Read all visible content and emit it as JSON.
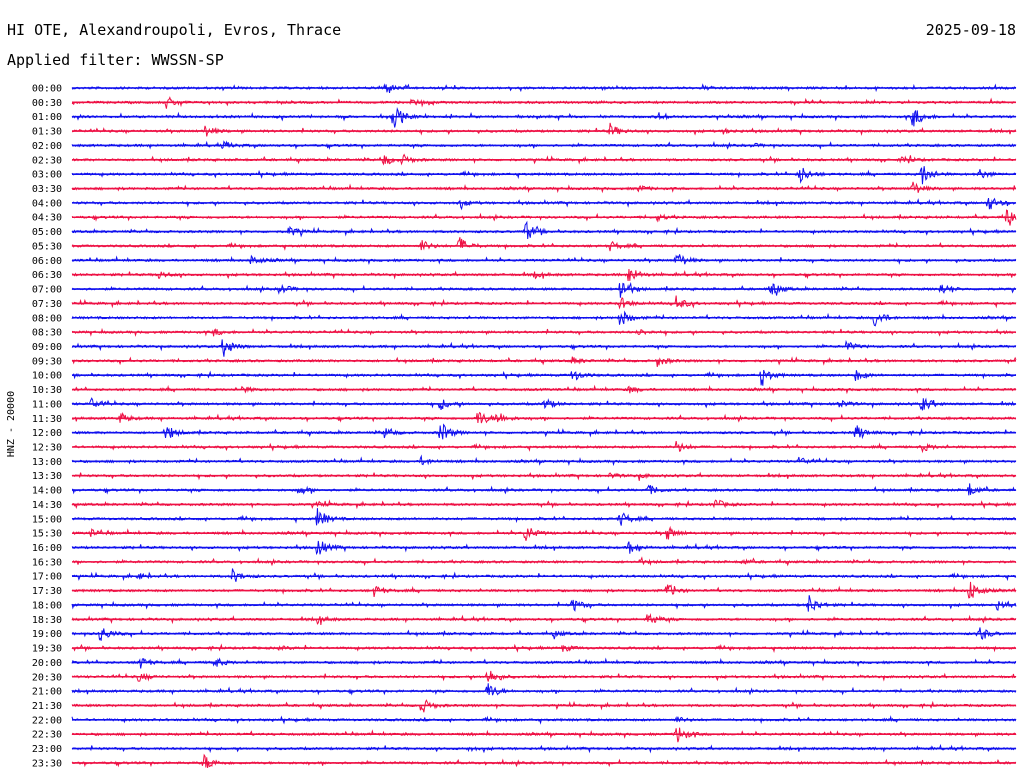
{
  "header": {
    "title": "HI OTE, Alexandroupoli, Evros, Thrace",
    "date": "2025-09-18",
    "filter": "Applied filter: WWSSN-SP"
  },
  "chart_data": {
    "type": "line",
    "ylabel": "HNZ - 20000",
    "colors": [
      "#1010ee",
      "#ee1044"
    ],
    "rows": [
      {
        "label": "00:00",
        "events": [
          {
            "t": 0.33,
            "a": 1.0
          },
          {
            "t": 0.67,
            "a": 0.25
          }
        ]
      },
      {
        "label": "00:30",
        "events": [
          {
            "t": 0.1,
            "a": 1.0
          },
          {
            "t": 0.36,
            "a": 0.5
          }
        ]
      },
      {
        "label": "01:00",
        "events": [
          {
            "t": 0.34,
            "a": 2.2
          },
          {
            "t": 0.62,
            "a": 0.8
          },
          {
            "t": 0.89,
            "a": 2.0
          }
        ]
      },
      {
        "label": "01:30",
        "events": [
          {
            "t": 0.14,
            "a": 1.1
          },
          {
            "t": 0.57,
            "a": 1.2
          },
          {
            "t": 0.69,
            "a": 0.4
          }
        ]
      },
      {
        "label": "02:00",
        "events": [
          {
            "t": 0.16,
            "a": 0.6
          },
          {
            "t": 0.72,
            "a": 0.3
          }
        ]
      },
      {
        "label": "02:30",
        "events": [
          {
            "t": 0.33,
            "a": 1.0
          },
          {
            "t": 0.35,
            "a": 0.8
          },
          {
            "t": 0.88,
            "a": 0.8
          }
        ]
      },
      {
        "label": "03:00",
        "events": [
          {
            "t": 0.77,
            "a": 1.8
          },
          {
            "t": 0.9,
            "a": 2.0
          },
          {
            "t": 0.96,
            "a": 0.9
          }
        ]
      },
      {
        "label": "03:30",
        "events": [
          {
            "t": 0.6,
            "a": 0.5
          },
          {
            "t": 0.89,
            "a": 1.3
          }
        ]
      },
      {
        "label": "04:00",
        "events": [
          {
            "t": 0.41,
            "a": 0.7
          },
          {
            "t": 0.97,
            "a": 1.4
          }
        ]
      },
      {
        "label": "04:30",
        "events": [
          {
            "t": 0.62,
            "a": 0.5
          },
          {
            "t": 0.99,
            "a": 1.5
          }
        ]
      },
      {
        "label": "05:00",
        "events": [
          {
            "t": 0.23,
            "a": 0.9
          },
          {
            "t": 0.48,
            "a": 1.8
          }
        ]
      },
      {
        "label": "05:30",
        "events": [
          {
            "t": 0.37,
            "a": 1.0
          },
          {
            "t": 0.41,
            "a": 1.6
          },
          {
            "t": 0.57,
            "a": 0.8
          }
        ]
      },
      {
        "label": "06:00",
        "events": [
          {
            "t": 0.19,
            "a": 0.9
          },
          {
            "t": 0.64,
            "a": 1.6
          }
        ]
      },
      {
        "label": "06:30",
        "events": [
          {
            "t": 0.09,
            "a": 0.8
          },
          {
            "t": 0.59,
            "a": 1.5
          },
          {
            "t": 0.49,
            "a": 0.5
          }
        ]
      },
      {
        "label": "07:00",
        "events": [
          {
            "t": 0.22,
            "a": 0.9
          },
          {
            "t": 0.58,
            "a": 2.2
          },
          {
            "t": 0.74,
            "a": 1.4
          },
          {
            "t": 0.92,
            "a": 1.0
          }
        ]
      },
      {
        "label": "07:30",
        "events": [
          {
            "t": 0.58,
            "a": 1.1
          },
          {
            "t": 0.64,
            "a": 1.3
          }
        ]
      },
      {
        "label": "08:00",
        "events": [
          {
            "t": 0.58,
            "a": 1.6
          },
          {
            "t": 0.85,
            "a": 1.6
          }
        ]
      },
      {
        "label": "08:30",
        "events": [
          {
            "t": 0.15,
            "a": 0.6
          },
          {
            "t": 0.6,
            "a": 0.5
          }
        ]
      },
      {
        "label": "09:00",
        "events": [
          {
            "t": 0.16,
            "a": 1.8
          },
          {
            "t": 0.82,
            "a": 0.8
          }
        ]
      },
      {
        "label": "09:30",
        "events": [
          {
            "t": 0.53,
            "a": 0.6
          },
          {
            "t": 0.62,
            "a": 0.9
          }
        ]
      },
      {
        "label": "10:00",
        "events": [
          {
            "t": 0.53,
            "a": 1.1
          },
          {
            "t": 0.73,
            "a": 1.6
          },
          {
            "t": 0.83,
            "a": 0.9
          }
        ]
      },
      {
        "label": "10:30",
        "events": [
          {
            "t": 0.18,
            "a": 0.5
          },
          {
            "t": 0.59,
            "a": 0.6
          }
        ]
      },
      {
        "label": "11:00",
        "events": [
          {
            "t": 0.02,
            "a": 1.0
          },
          {
            "t": 0.39,
            "a": 1.0
          },
          {
            "t": 0.5,
            "a": 1.0
          },
          {
            "t": 0.81,
            "a": 0.9
          },
          {
            "t": 0.9,
            "a": 1.4
          }
        ]
      },
      {
        "label": "11:30",
        "events": [
          {
            "t": 0.05,
            "a": 1.0
          },
          {
            "t": 0.43,
            "a": 1.6
          },
          {
            "t": 0.45,
            "a": 1.2
          }
        ]
      },
      {
        "label": "12:00",
        "events": [
          {
            "t": 0.1,
            "a": 1.4
          },
          {
            "t": 0.33,
            "a": 0.9
          },
          {
            "t": 0.39,
            "a": 2.0
          },
          {
            "t": 0.83,
            "a": 1.4
          }
        ]
      },
      {
        "label": "12:30",
        "events": [
          {
            "t": 0.64,
            "a": 1.0
          },
          {
            "t": 0.9,
            "a": 0.8
          }
        ]
      },
      {
        "label": "13:00",
        "events": [
          {
            "t": 0.37,
            "a": 0.7
          },
          {
            "t": 0.77,
            "a": 0.7
          }
        ]
      },
      {
        "label": "13:30",
        "events": [
          {
            "t": 0.57,
            "a": 0.4
          },
          {
            "t": 0.6,
            "a": 0.4
          }
        ]
      },
      {
        "label": "14:00",
        "events": [
          {
            "t": 0.24,
            "a": 0.8
          },
          {
            "t": 0.61,
            "a": 0.9
          },
          {
            "t": 0.95,
            "a": 1.1
          }
        ]
      },
      {
        "label": "14:30",
        "events": [
          {
            "t": 0.68,
            "a": 1.1
          },
          {
            "t": 0.26,
            "a": 0.4
          }
        ]
      },
      {
        "label": "15:00",
        "events": [
          {
            "t": 0.26,
            "a": 1.8
          },
          {
            "t": 0.58,
            "a": 1.4
          }
        ]
      },
      {
        "label": "15:30",
        "events": [
          {
            "t": 0.02,
            "a": 0.6
          },
          {
            "t": 0.48,
            "a": 1.5
          },
          {
            "t": 0.63,
            "a": 1.2
          }
        ]
      },
      {
        "label": "16:00",
        "events": [
          {
            "t": 0.26,
            "a": 1.6
          },
          {
            "t": 0.59,
            "a": 1.1
          }
        ]
      },
      {
        "label": "16:30",
        "events": [
          {
            "t": 0.6,
            "a": 0.4
          },
          {
            "t": 0.71,
            "a": 0.4
          }
        ]
      },
      {
        "label": "17:00",
        "events": [
          {
            "t": 0.17,
            "a": 1.2
          },
          {
            "t": 0.07,
            "a": 0.5
          }
        ]
      },
      {
        "label": "17:30",
        "events": [
          {
            "t": 0.32,
            "a": 0.9
          },
          {
            "t": 0.63,
            "a": 1.2
          },
          {
            "t": 0.95,
            "a": 2.0
          }
        ]
      },
      {
        "label": "18:00",
        "events": [
          {
            "t": 0.53,
            "a": 1.2
          },
          {
            "t": 0.78,
            "a": 1.8
          },
          {
            "t": 0.98,
            "a": 0.8
          }
        ]
      },
      {
        "label": "18:30",
        "events": [
          {
            "t": 0.26,
            "a": 0.7
          },
          {
            "t": 0.61,
            "a": 1.2
          }
        ]
      },
      {
        "label": "19:00",
        "events": [
          {
            "t": 0.03,
            "a": 1.5
          },
          {
            "t": 0.51,
            "a": 0.5
          },
          {
            "t": 0.96,
            "a": 1.6
          }
        ]
      },
      {
        "label": "19:30",
        "events": [
          {
            "t": 0.52,
            "a": 0.6
          },
          {
            "t": 0.22,
            "a": 0.3
          }
        ]
      },
      {
        "label": "20:00",
        "events": [
          {
            "t": 0.07,
            "a": 1.2
          },
          {
            "t": 0.15,
            "a": 1.0
          }
        ]
      },
      {
        "label": "20:30",
        "events": [
          {
            "t": 0.07,
            "a": 0.8
          },
          {
            "t": 0.44,
            "a": 1.6
          }
        ]
      },
      {
        "label": "21:00",
        "events": [
          {
            "t": 0.44,
            "a": 1.6
          }
        ]
      },
      {
        "label": "21:30",
        "events": [
          {
            "t": 0.37,
            "a": 1.4
          }
        ]
      },
      {
        "label": "22:00",
        "events": [
          {
            "t": 0.64,
            "a": 0.5
          }
        ]
      },
      {
        "label": "22:30",
        "events": [
          {
            "t": 0.64,
            "a": 1.8
          }
        ]
      },
      {
        "label": "23:00",
        "events": [
          {
            "t": 0.42,
            "a": 0.3
          }
        ]
      },
      {
        "label": "23:30",
        "events": [
          {
            "t": 0.14,
            "a": 1.4
          }
        ]
      }
    ]
  }
}
